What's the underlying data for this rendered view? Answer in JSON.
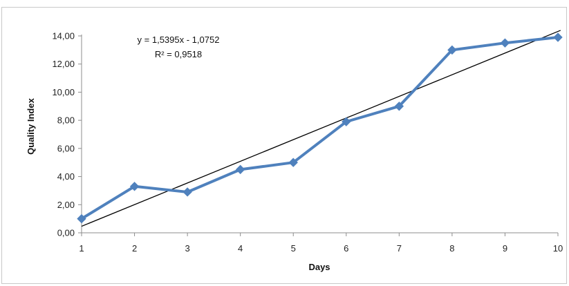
{
  "chart_data": {
    "type": "line",
    "x": [
      1,
      2,
      3,
      4,
      5,
      6,
      7,
      8,
      9,
      10
    ],
    "series": [
      {
        "values": [
          1.0,
          3.3,
          2.9,
          4.5,
          5.0,
          7.9,
          9.0,
          13.0,
          13.5,
          13.9
        ],
        "color": "#4f81bd",
        "marker": "diamond"
      }
    ],
    "trendline": {
      "type": "linear",
      "slope": 1.5395,
      "intercept": -1.0752,
      "color": "#000000"
    },
    "annotations": {
      "equation": "y = 1,5395x - 1,0752",
      "r_squared": "R² = 0,9518"
    },
    "xlabel": "Days",
    "ylabel": "Quality Index",
    "xlim": [
      1,
      10
    ],
    "ylim": [
      0,
      14
    ],
    "x_ticks": [
      "1",
      "2",
      "3",
      "4",
      "5",
      "6",
      "7",
      "8",
      "9",
      "10"
    ],
    "y_ticks": [
      "0,00",
      "2,00",
      "4,00",
      "6,00",
      "8,00",
      "10,00",
      "12,00",
      "14,00"
    ],
    "grid": false,
    "legend": "none"
  }
}
